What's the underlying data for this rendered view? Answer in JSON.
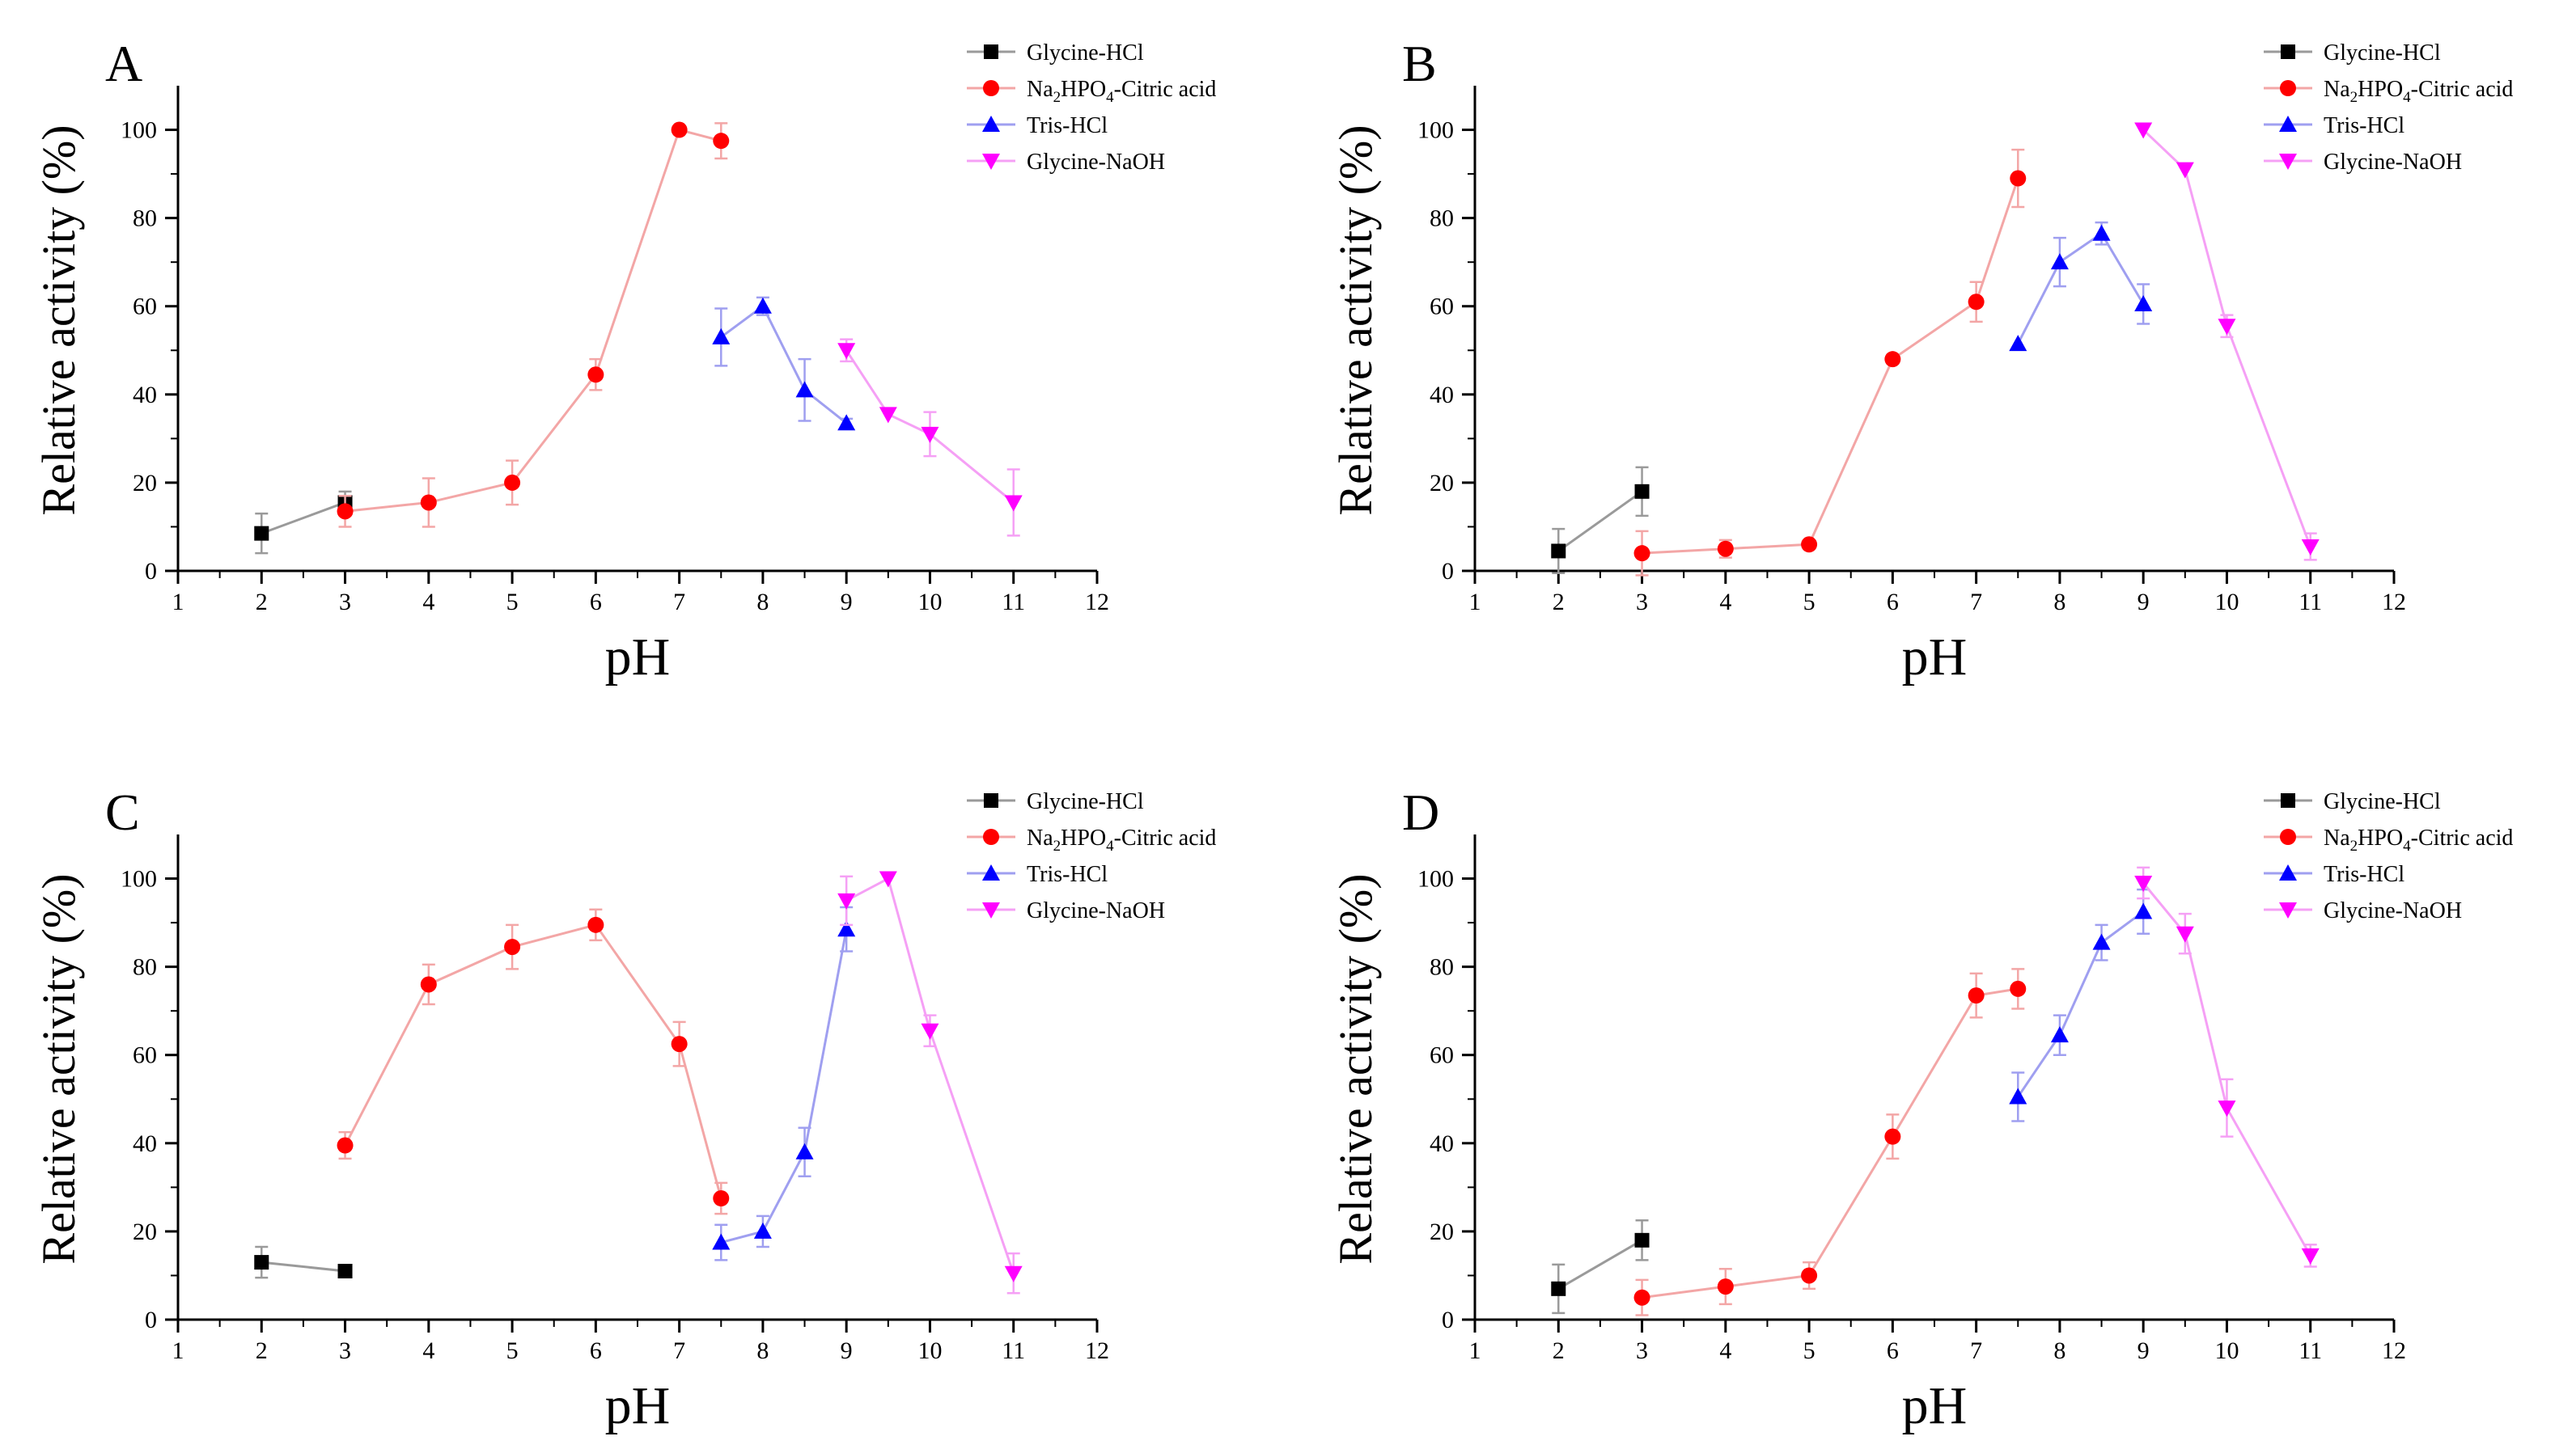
{
  "chart_data": [
    {
      "panel_label": "A",
      "type": "line",
      "xlabel": "pH",
      "ylabel": "Relative activity (%)",
      "xlim": [
        1,
        12
      ],
      "ylim": [
        0,
        110
      ],
      "xticks": [
        1,
        2,
        3,
        4,
        5,
        6,
        7,
        8,
        9,
        10,
        11,
        12
      ],
      "yticks": [
        0,
        20,
        40,
        60,
        80,
        100
      ],
      "legend_position": "top-right",
      "series": [
        {
          "name": "Glycine-HCl",
          "marker": "square",
          "color": "#000000",
          "line_color": "#9a9a9a",
          "x": [
            2,
            3
          ],
          "y": [
            8.5,
            15.5
          ],
          "err": [
            4.5,
            2.5
          ]
        },
        {
          "name": "Na2HPO4-Citric acid",
          "marker": "circle",
          "color": "#ff0000",
          "line_color": "#f3a6a6",
          "x": [
            3,
            4,
            5,
            6,
            7,
            7.5
          ],
          "y": [
            13.5,
            15.5,
            20,
            44.5,
            100,
            97.5
          ],
          "err": [
            3.5,
            5.5,
            5,
            3.5,
            0,
            4
          ]
        },
        {
          "name": "Tris-HCl",
          "marker": "triangle-up",
          "color": "#0000ff",
          "line_color": "#9f9ff0",
          "x": [
            7.5,
            8,
            8.5,
            9
          ],
          "y": [
            53,
            60,
            41,
            33.5
          ],
          "err": [
            6.5,
            2,
            7,
            1
          ]
        },
        {
          "name": "Glycine-NaOH",
          "marker": "triangle-down",
          "color": "#ff00ff",
          "line_color": "#f5a0f5",
          "x": [
            9,
            9.5,
            10,
            11
          ],
          "y": [
            50,
            35.5,
            31,
            15.5
          ],
          "err": [
            2.5,
            0,
            5,
            7.5
          ]
        }
      ]
    },
    {
      "panel_label": "B",
      "type": "line",
      "xlabel": "pH",
      "ylabel": "Relative activity (%)",
      "xlim": [
        1,
        12
      ],
      "ylim": [
        0,
        110
      ],
      "xticks": [
        1,
        2,
        3,
        4,
        5,
        6,
        7,
        8,
        9,
        10,
        11,
        12
      ],
      "yticks": [
        0,
        20,
        40,
        60,
        80,
        100
      ],
      "legend_position": "top-right",
      "series": [
        {
          "name": "Glycine-HCl",
          "marker": "square",
          "color": "#000000",
          "line_color": "#9a9a9a",
          "x": [
            2,
            3
          ],
          "y": [
            4.5,
            18
          ],
          "err": [
            5,
            5.5
          ]
        },
        {
          "name": "Na2HPO4-Citric acid",
          "marker": "circle",
          "color": "#ff0000",
          "line_color": "#f3a6a6",
          "x": [
            3,
            4,
            5,
            6,
            7,
            7.5
          ],
          "y": [
            4,
            5,
            6,
            48,
            61,
            89
          ],
          "err": [
            5,
            2,
            0,
            1,
            4.5,
            6.5
          ]
        },
        {
          "name": "Tris-HCl",
          "marker": "triangle-up",
          "color": "#0000ff",
          "line_color": "#9f9ff0",
          "x": [
            7.5,
            8,
            8.5,
            9
          ],
          "y": [
            51.5,
            70,
            76.5,
            60.5
          ],
          "err": [
            0,
            5.5,
            2.5,
            4.5
          ]
        },
        {
          "name": "Glycine-NaOH",
          "marker": "triangle-down",
          "color": "#ff00ff",
          "line_color": "#f5a0f5",
          "x": [
            9,
            9.5,
            10,
            11
          ],
          "y": [
            100,
            91,
            55.5,
            5.5
          ],
          "err": [
            0,
            0,
            2.5,
            3
          ]
        }
      ]
    },
    {
      "panel_label": "C",
      "type": "line",
      "xlabel": "pH",
      "ylabel": "Relative activity (%)",
      "xlim": [
        1,
        12
      ],
      "ylim": [
        0,
        110
      ],
      "xticks": [
        1,
        2,
        3,
        4,
        5,
        6,
        7,
        8,
        9,
        10,
        11,
        12
      ],
      "yticks": [
        0,
        20,
        40,
        60,
        80,
        100
      ],
      "legend_position": "top-right",
      "series": [
        {
          "name": "Glycine-HCl",
          "marker": "square",
          "color": "#000000",
          "line_color": "#9a9a9a",
          "x": [
            2,
            3
          ],
          "y": [
            13,
            11
          ],
          "err": [
            3.5,
            1
          ]
        },
        {
          "name": "Na2HPO4-Citric acid",
          "marker": "circle",
          "color": "#ff0000",
          "line_color": "#f3a6a6",
          "x": [
            3,
            4,
            5,
            6,
            7,
            7.5
          ],
          "y": [
            39.5,
            76,
            84.5,
            89.5,
            62.5,
            27.5
          ],
          "err": [
            3,
            4.5,
            5,
            3.5,
            5,
            3.5
          ]
        },
        {
          "name": "Tris-HCl",
          "marker": "triangle-up",
          "color": "#0000ff",
          "line_color": "#9f9ff0",
          "x": [
            7.5,
            8,
            8.5,
            9
          ],
          "y": [
            17.5,
            20,
            38,
            88.5
          ],
          "err": [
            4,
            3.5,
            5.5,
            5
          ]
        },
        {
          "name": "Glycine-NaOH",
          "marker": "triangle-down",
          "color": "#ff00ff",
          "line_color": "#f5a0f5",
          "x": [
            9,
            9.5,
            10,
            11
          ],
          "y": [
            95,
            100,
            65.5,
            10.5
          ],
          "err": [
            5.5,
            0,
            3.5,
            4.5
          ]
        }
      ]
    },
    {
      "panel_label": "D",
      "type": "line",
      "xlabel": "pH",
      "ylabel": "Relative activity (%)",
      "xlim": [
        1,
        12
      ],
      "ylim": [
        0,
        110
      ],
      "xticks": [
        1,
        2,
        3,
        4,
        5,
        6,
        7,
        8,
        9,
        10,
        11,
        12
      ],
      "yticks": [
        0,
        20,
        40,
        60,
        80,
        100
      ],
      "legend_position": "top-right",
      "series": [
        {
          "name": "Glycine-HCl",
          "marker": "square",
          "color": "#000000",
          "line_color": "#9a9a9a",
          "x": [
            2,
            3
          ],
          "y": [
            7,
            18
          ],
          "err": [
            5.5,
            4.5
          ]
        },
        {
          "name": "Na2HPO4-Citric acid",
          "marker": "circle",
          "color": "#ff0000",
          "line_color": "#f3a6a6",
          "x": [
            3,
            4,
            5,
            6,
            7,
            7.5
          ],
          "y": [
            5,
            7.5,
            10,
            41.5,
            73.5,
            75
          ],
          "err": [
            4,
            4,
            3,
            5,
            5,
            4.5
          ]
        },
        {
          "name": "Tris-HCl",
          "marker": "triangle-up",
          "color": "#0000ff",
          "line_color": "#9f9ff0",
          "x": [
            7.5,
            8,
            8.5,
            9
          ],
          "y": [
            50.5,
            64.5,
            85.5,
            92.5
          ],
          "err": [
            5.5,
            4.5,
            4,
            5
          ]
        },
        {
          "name": "Glycine-NaOH",
          "marker": "triangle-down",
          "color": "#ff00ff",
          "line_color": "#f5a0f5",
          "x": [
            9,
            9.5,
            10,
            11
          ],
          "y": [
            99,
            87.5,
            48,
            14.5
          ],
          "err": [
            3.5,
            4.5,
            6.5,
            2.5
          ]
        }
      ]
    }
  ]
}
